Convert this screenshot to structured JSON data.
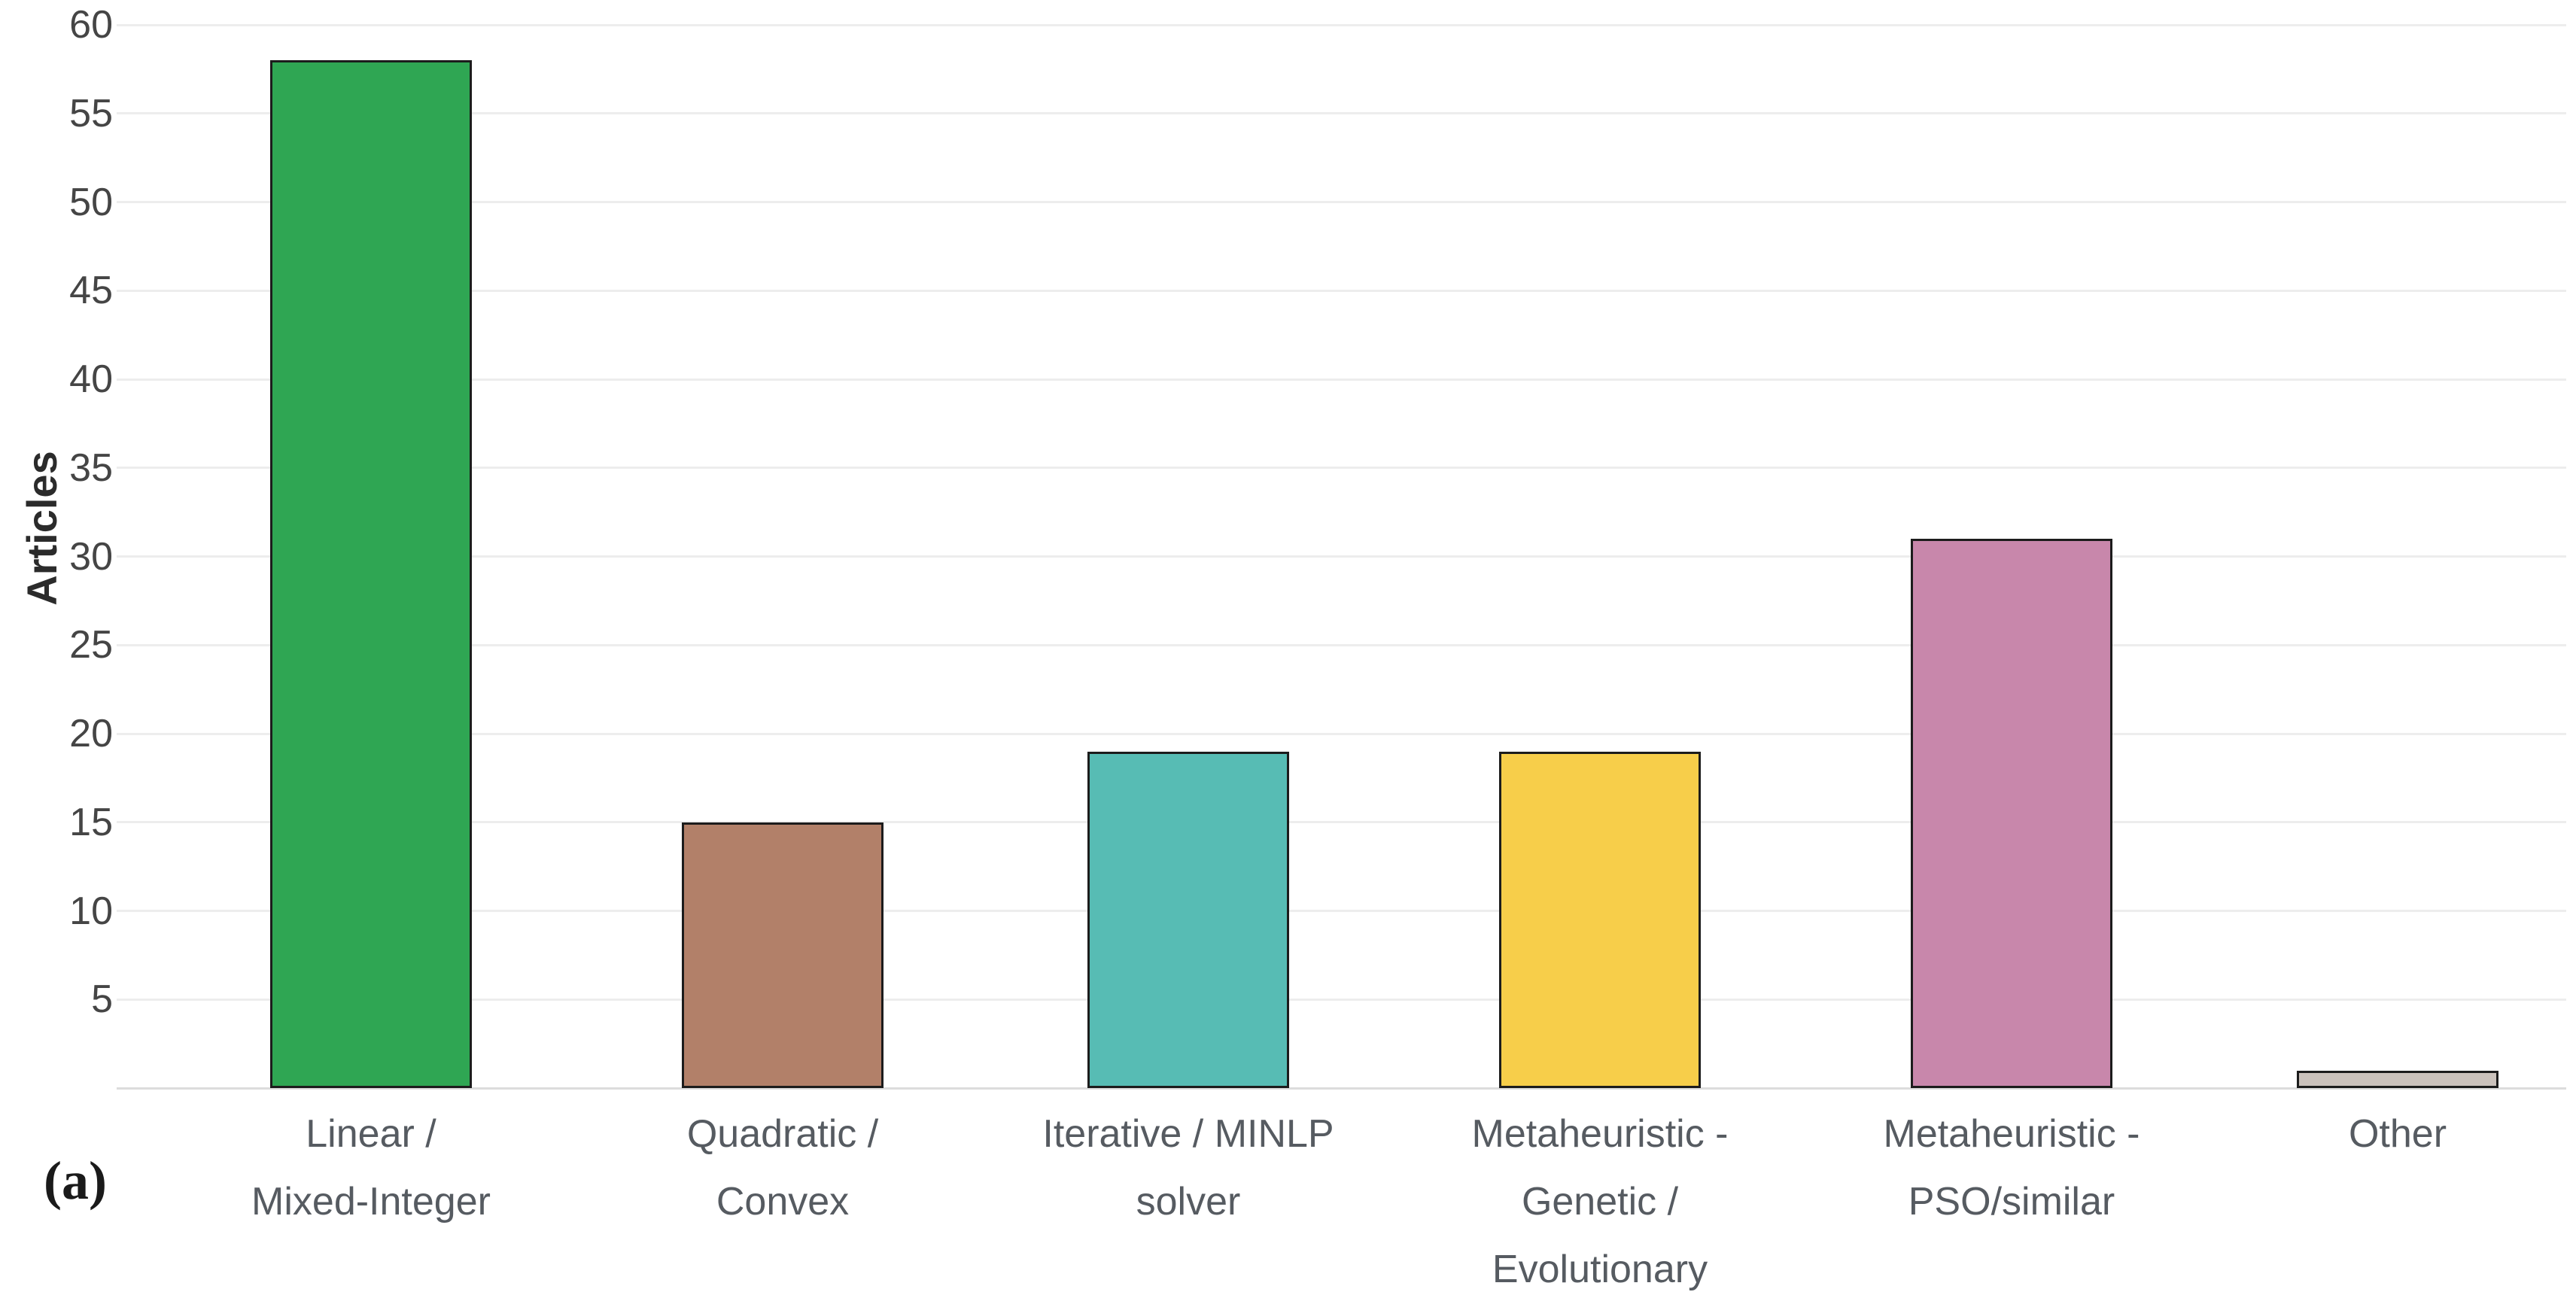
{
  "chart_data": {
    "type": "bar",
    "title": "",
    "xlabel": "",
    "ylabel": "Articles",
    "panel_label": "(a)",
    "categories": [
      {
        "label": "Linear / Mixed-Integer",
        "lines": [
          "Linear /",
          "Mixed-Integer"
        ]
      },
      {
        "label": "Quadratic / Convex",
        "lines": [
          "Quadratic /",
          "Convex"
        ]
      },
      {
        "label": "Iterative / MINLP solver",
        "lines": [
          "Iterative / MINLP",
          "solver"
        ]
      },
      {
        "label": "Metaheuristic - Genetic / Evolutionary",
        "lines": [
          "Metaheuristic -",
          "Genetic /",
          "Evolutionary"
        ]
      },
      {
        "label": "Metaheuristic - PSO/similar",
        "lines": [
          "Metaheuristic -",
          "PSO/similar"
        ]
      },
      {
        "label": "Other",
        "lines": [
          "Other"
        ]
      }
    ],
    "values": [
      58,
      15,
      19,
      19,
      31,
      1
    ],
    "bar_colors": [
      "#2fa653",
      "#b28069",
      "#57bcb4",
      "#f7ce4a",
      "#c887ab",
      "#cbc2bc"
    ],
    "bar_border_color": "#1c1c1c",
    "yticks": [
      5,
      10,
      15,
      20,
      25,
      30,
      35,
      40,
      45,
      50,
      55,
      60
    ],
    "ylim": [
      0,
      61
    ],
    "grid": "horizontal",
    "gridline_color": "#ededed",
    "axis_line_color": "#dcdcdc",
    "tick_label_color": "#454545",
    "category_label_color": "#565b61",
    "legend": "none"
  }
}
